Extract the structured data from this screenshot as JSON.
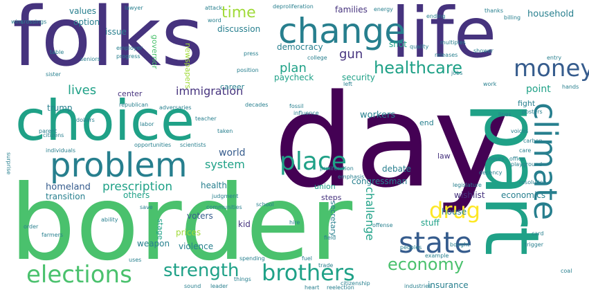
{
  "palette": {
    "dark_purple": "#440154",
    "indigo": "#46337e",
    "slate_blue": "#365c8d",
    "teal_blue": "#277f8e",
    "teal": "#1fa187",
    "green": "#4ac16d",
    "lime": "#a0da39",
    "yellow": "#fde725"
  },
  "words": [
    {
      "text": "day",
      "color": "dark_purple"
    },
    {
      "text": "border",
      "color": "green"
    },
    {
      "text": "folks",
      "color": "indigo"
    },
    {
      "text": "life",
      "color": "indigo"
    },
    {
      "text": "choice",
      "color": "teal"
    },
    {
      "text": "part",
      "color": "teal"
    },
    {
      "text": "change",
      "color": "teal_blue"
    },
    {
      "text": "problem",
      "color": "teal_blue"
    },
    {
      "text": "climate",
      "color": "teal_blue"
    },
    {
      "text": "state",
      "color": "slate_blue"
    },
    {
      "text": "place",
      "color": "teal"
    },
    {
      "text": "money",
      "color": "slate_blue"
    },
    {
      "text": "elections",
      "color": "green"
    },
    {
      "text": "brothers",
      "color": "teal"
    },
    {
      "text": "strength",
      "color": "teal"
    },
    {
      "text": "economy",
      "color": "green"
    },
    {
      "text": "drug",
      "color": "yellow"
    },
    {
      "text": "healthcare",
      "color": "teal"
    },
    {
      "text": "prescription",
      "color": "teal"
    },
    {
      "text": "immigration",
      "color": "indigo"
    },
    {
      "text": "lives",
      "color": "teal"
    },
    {
      "text": "plan",
      "color": "teal"
    },
    {
      "text": "system",
      "color": "teal"
    },
    {
      "text": "world",
      "color": "slate_blue"
    },
    {
      "text": "challenge",
      "color": "teal"
    },
    {
      "text": "time",
      "color": "lime"
    },
    {
      "text": "gun",
      "color": "indigo"
    },
    {
      "text": "point",
      "color": "teal"
    },
    {
      "text": "security",
      "color": "teal"
    },
    {
      "text": "democracy",
      "color": "teal_blue"
    },
    {
      "text": "families",
      "color": "indigo"
    },
    {
      "text": "household",
      "color": "teal_blue"
    },
    {
      "text": "values",
      "color": "teal_blue"
    },
    {
      "text": "option",
      "color": "teal_blue"
    },
    {
      "text": "issue",
      "color": "teal_blue"
    },
    {
      "text": "discussion",
      "color": "teal_blue"
    },
    {
      "text": "governor",
      "color": "green"
    },
    {
      "text": "newspapers",
      "color": "lime"
    },
    {
      "text": "paycheck",
      "color": "teal"
    },
    {
      "text": "trump",
      "color": "teal_blue"
    },
    {
      "text": "center",
      "color": "indigo"
    },
    {
      "text": "career",
      "color": "teal_blue"
    },
    {
      "text": "fight",
      "color": "teal_blue"
    },
    {
      "text": "shot",
      "color": "teal"
    },
    {
      "text": "workers",
      "color": "teal_blue"
    },
    {
      "text": "end",
      "color": "teal_blue"
    },
    {
      "text": "law",
      "color": "indigo"
    },
    {
      "text": "debate",
      "color": "teal_blue"
    },
    {
      "text": "homeland",
      "color": "slate_blue"
    },
    {
      "text": "transition",
      "color": "teal_blue"
    },
    {
      "text": "health",
      "color": "teal_blue"
    },
    {
      "text": "others",
      "color": "teal"
    },
    {
      "text": "congressman",
      "color": "teal_blue"
    },
    {
      "text": "union",
      "color": "teal"
    },
    {
      "text": "steps",
      "color": "indigo"
    },
    {
      "text": "wishlist",
      "color": "indigo"
    },
    {
      "text": "economics",
      "color": "teal_blue"
    },
    {
      "text": "voters",
      "color": "slate_blue"
    },
    {
      "text": "kid",
      "color": "indigo"
    },
    {
      "text": "house",
      "color": "teal_blue"
    },
    {
      "text": "stuff",
      "color": "teal"
    },
    {
      "text": "prices",
      "color": "lime"
    },
    {
      "text": "weapon",
      "color": "teal_blue"
    },
    {
      "text": "violence",
      "color": "teal_blue"
    },
    {
      "text": "secretary",
      "color": "teal_blue"
    },
    {
      "text": "stage",
      "color": "teal"
    },
    {
      "text": "insurance",
      "color": "teal_blue"
    },
    {
      "text": "lawyer",
      "color": "teal_blue"
    },
    {
      "text": "attack",
      "color": "teal_blue"
    },
    {
      "text": "deproliferation",
      "color": "teal_blue"
    },
    {
      "text": "energy",
      "color": "teal_blue"
    },
    {
      "text": "thanks",
      "color": "teal_blue"
    },
    {
      "text": "ending",
      "color": "teal_blue"
    },
    {
      "text": "billing",
      "color": "teal_blue"
    },
    {
      "text": "employer",
      "color": "teal_blue"
    },
    {
      "text": "progress",
      "color": "teal_blue"
    },
    {
      "text": "republican",
      "color": "teal_blue"
    },
    {
      "text": "adversaries",
      "color": "teal_blue"
    },
    {
      "text": "decades",
      "color": "teal_blue"
    },
    {
      "text": "fossil",
      "color": "teal_blue"
    },
    {
      "text": "influence",
      "color": "teal_blue"
    },
    {
      "text": "teacher",
      "color": "teal_blue"
    },
    {
      "text": "labor",
      "color": "teal_blue"
    },
    {
      "text": "opportunities",
      "color": "teal_blue"
    },
    {
      "text": "scientists",
      "color": "teal_blue"
    },
    {
      "text": "individuals",
      "color": "teal_blue"
    },
    {
      "text": "proliferation",
      "color": "teal_blue"
    },
    {
      "text": "emphasis",
      "color": "teal_blue"
    },
    {
      "text": "playground",
      "color": "teal_blue"
    },
    {
      "text": "resolution",
      "color": "teal_blue"
    },
    {
      "text": "legislature",
      "color": "teal_blue"
    },
    {
      "text": "judgment",
      "color": "teal_blue"
    },
    {
      "text": "school",
      "color": "teal_blue"
    },
    {
      "text": "communities",
      "color": "teal_blue"
    },
    {
      "text": "peoples",
      "color": "teal_blue"
    },
    {
      "text": "spending",
      "color": "teal_blue"
    },
    {
      "text": "citizenship",
      "color": "teal_blue"
    },
    {
      "text": "industries",
      "color": "teal_blue"
    },
    {
      "text": "reelection",
      "color": "teal_blue"
    },
    {
      "text": "leader",
      "color": "teal_blue"
    },
    {
      "text": "farmers",
      "color": "teal_blue"
    },
    {
      "text": "trigger",
      "color": "teal_blue"
    },
    {
      "text": "carbon",
      "color": "teal_blue"
    },
    {
      "text": "voices",
      "color": "teal_blue"
    },
    {
      "text": "posters",
      "color": "teal_blue"
    },
    {
      "text": "lines",
      "color": "teal_blue"
    },
    {
      "text": "crossings",
      "color": "teal_blue"
    },
    {
      "text": "college",
      "color": "teal_blue"
    },
    {
      "text": "quality",
      "color": "teal_blue"
    },
    {
      "text": "releases",
      "color": "teal_blue"
    },
    {
      "text": "multiples",
      "color": "teal_blue"
    },
    {
      "text": "shower",
      "color": "teal_blue"
    },
    {
      "text": "entry",
      "color": "teal_blue"
    },
    {
      "text": "position",
      "color": "teal_blue"
    },
    {
      "text": "dollars",
      "color": "teal_blue"
    },
    {
      "text": "citizens",
      "color": "teal_blue"
    },
    {
      "text": "parent",
      "color": "teal_blue"
    },
    {
      "text": "surprise",
      "color": "teal_blue"
    },
    {
      "text": "order",
      "color": "teal_blue"
    },
    {
      "text": "ability",
      "color": "teal_blue"
    },
    {
      "text": "hours",
      "color": "teal_blue"
    },
    {
      "text": "decency",
      "color": "teal_blue"
    },
    {
      "text": "office",
      "color": "teal_blue"
    },
    {
      "text": "bought",
      "color": "teal_blue"
    },
    {
      "text": "example",
      "color": "teal_blue"
    },
    {
      "text": "trade",
      "color": "teal_blue"
    },
    {
      "text": "fuel",
      "color": "teal_blue"
    },
    {
      "text": "heart",
      "color": "teal_blue"
    },
    {
      "text": "coal",
      "color": "teal_blue"
    },
    {
      "text": "field",
      "color": "teal_blue"
    },
    {
      "text": "things",
      "color": "teal_blue"
    },
    {
      "text": "sound",
      "color": "teal_blue"
    },
    {
      "text": "word",
      "color": "teal_blue"
    },
    {
      "text": "press",
      "color": "teal_blue"
    },
    {
      "text": "table",
      "color": "teal_blue"
    },
    {
      "text": "seniors",
      "color": "teal_blue"
    },
    {
      "text": "sister",
      "color": "teal_blue"
    },
    {
      "text": "jobs",
      "color": "teal_blue"
    },
    {
      "text": "left",
      "color": "teal_blue"
    },
    {
      "text": "work",
      "color": "teal_blue"
    },
    {
      "text": "care",
      "color": "teal_blue"
    },
    {
      "text": "hands",
      "color": "teal_blue"
    },
    {
      "text": "taken",
      "color": "teal_blue"
    },
    {
      "text": "offense",
      "color": "teal_blue"
    },
    {
      "text": "hire",
      "color": "teal_blue"
    },
    {
      "text": "uses",
      "color": "teal_blue"
    },
    {
      "text": "save",
      "color": "teal_blue"
    },
    {
      "text": "card",
      "color": "teal_blue"
    },
    {
      "text": "wins",
      "color": "teal_blue"
    }
  ]
}
